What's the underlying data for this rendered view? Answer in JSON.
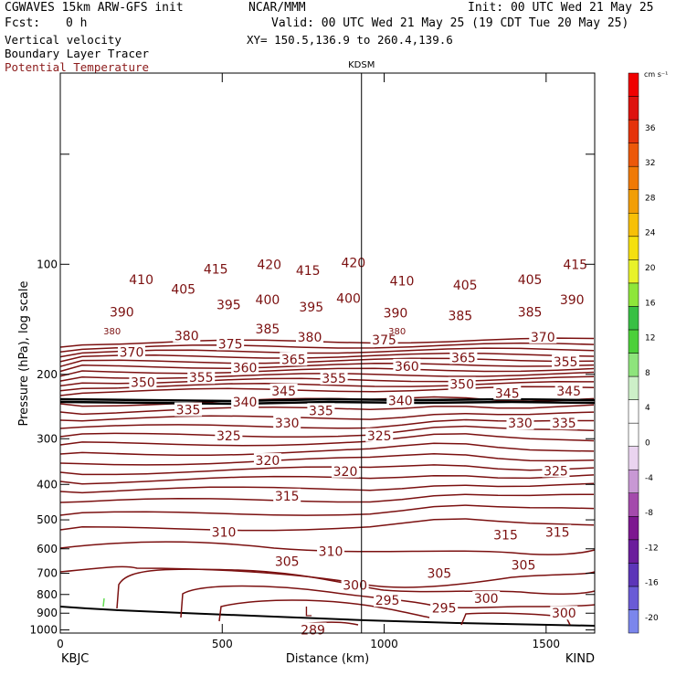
{
  "header": {
    "model": "CGWAVES 15km ARW-GFS init",
    "org": "NCAR/MMM",
    "init": "Init: 00 UTC Wed 21 May 25",
    "fcst_label": "Fcst:",
    "fcst_value": "0 h",
    "valid": "Valid: 00 UTC Wed 21 May 25 (19 CDT Tue 20 May 25)",
    "field1": "Vertical velocity",
    "xy": "XY= 150.5,136.9 to 260.4,139.6",
    "field2": "Boundary Layer Tracer",
    "field3": "Potential Temperature"
  },
  "chart_data": {
    "type": "contour",
    "ylabel": "Pressure (hPa), log scale",
    "xlabel": "Distance (km)",
    "x_ticks": [
      "0",
      "500",
      "1000",
      "1500"
    ],
    "xlim": [
      0,
      1650
    ],
    "y_ticks": [
      "100",
      "200",
      "300",
      "400",
      "500",
      "600",
      "700",
      "800",
      "900",
      "1000"
    ],
    "ylim": [
      1020,
      30
    ],
    "y_scale": "log",
    "station_marker": {
      "label": "KDSM",
      "x": 930
    },
    "left_station": "KBJC",
    "right_station": "KIND",
    "contour_color": "#7b1010",
    "contour_labels": [
      {
        "text": "420",
        "x": 645,
        "p": 100
      },
      {
        "text": "415",
        "x": 480,
        "p": 103
      },
      {
        "text": "415",
        "x": 765,
        "p": 104
      },
      {
        "text": "420",
        "x": 905,
        "p": 99
      },
      {
        "text": "415",
        "x": 1590,
        "p": 100
      },
      {
        "text": "410",
        "x": 250,
        "p": 110
      },
      {
        "text": "405",
        "x": 380,
        "p": 117
      },
      {
        "text": "410",
        "x": 1055,
        "p": 111
      },
      {
        "text": "405",
        "x": 1250,
        "p": 114
      },
      {
        "text": "405",
        "x": 1450,
        "p": 110
      },
      {
        "text": "400",
        "x": 640,
        "p": 125
      },
      {
        "text": "395",
        "x": 520,
        "p": 129
      },
      {
        "text": "395",
        "x": 775,
        "p": 131
      },
      {
        "text": "400",
        "x": 890,
        "p": 124
      },
      {
        "text": "390",
        "x": 1580,
        "p": 125
      },
      {
        "text": "390",
        "x": 190,
        "p": 135
      },
      {
        "text": "390",
        "x": 1035,
        "p": 136
      },
      {
        "text": "385",
        "x": 1235,
        "p": 138
      },
      {
        "text": "385",
        "x": 1450,
        "p": 135
      },
      {
        "text": "385",
        "x": 640,
        "p": 150
      },
      {
        "text": "380",
        "x": 390,
        "p": 157
      },
      {
        "text": "380",
        "x": 770,
        "p": 158
      },
      {
        "text": "375",
        "x": 1000,
        "p": 161
      },
      {
        "text": "370",
        "x": 1490,
        "p": 158
      },
      {
        "text": "375",
        "x": 525,
        "p": 165
      },
      {
        "text": "370",
        "x": 220,
        "p": 174
      },
      {
        "text": "365",
        "x": 720,
        "p": 182
      },
      {
        "text": "365",
        "x": 1245,
        "p": 180
      },
      {
        "text": "360",
        "x": 570,
        "p": 192
      },
      {
        "text": "360",
        "x": 1070,
        "p": 190
      },
      {
        "text": "355",
        "x": 1560,
        "p": 185
      },
      {
        "text": "355",
        "x": 435,
        "p": 204
      },
      {
        "text": "355",
        "x": 845,
        "p": 205
      },
      {
        "text": "350",
        "x": 255,
        "p": 210
      },
      {
        "text": "350",
        "x": 1240,
        "p": 213
      },
      {
        "text": "345",
        "x": 690,
        "p": 222
      },
      {
        "text": "345",
        "x": 1380,
        "p": 225
      },
      {
        "text": "345",
        "x": 1570,
        "p": 222
      },
      {
        "text": "340",
        "x": 570,
        "p": 238
      },
      {
        "text": "340",
        "x": 1050,
        "p": 236
      },
      {
        "text": "335",
        "x": 395,
        "p": 250
      },
      {
        "text": "335",
        "x": 805,
        "p": 251
      },
      {
        "text": "330",
        "x": 700,
        "p": 272
      },
      {
        "text": "330",
        "x": 1420,
        "p": 272
      },
      {
        "text": "335",
        "x": 1555,
        "p": 272
      },
      {
        "text": "325",
        "x": 520,
        "p": 294
      },
      {
        "text": "325",
        "x": 985,
        "p": 294
      },
      {
        "text": "320",
        "x": 640,
        "p": 344
      },
      {
        "text": "320",
        "x": 880,
        "p": 368
      },
      {
        "text": "325",
        "x": 1530,
        "p": 367
      },
      {
        "text": "315",
        "x": 700,
        "p": 430
      },
      {
        "text": "310",
        "x": 505,
        "p": 540
      },
      {
        "text": "315",
        "x": 1375,
        "p": 550
      },
      {
        "text": "315",
        "x": 1535,
        "p": 540
      },
      {
        "text": "310",
        "x": 835,
        "p": 610
      },
      {
        "text": "305",
        "x": 700,
        "p": 650
      },
      {
        "text": "305",
        "x": 1170,
        "p": 700
      },
      {
        "text": "305",
        "x": 1430,
        "p": 665
      },
      {
        "text": "300",
        "x": 910,
        "p": 755
      },
      {
        "text": "300",
        "x": 1315,
        "p": 820
      },
      {
        "text": "300",
        "x": 1555,
        "p": 900
      },
      {
        "text": "295",
        "x": 1010,
        "p": 830
      },
      {
        "text": "295",
        "x": 1185,
        "p": 870
      },
      {
        "text": "289",
        "x": 780,
        "p": 1000
      }
    ],
    "extrema": [
      {
        "label": "L",
        "x": 765,
        "p": 890
      }
    ],
    "tropopause_labels": [
      {
        "text": "380",
        "x": 160,
        "p": 152
      },
      {
        "text": "380",
        "x": 1040,
        "p": 152
      }
    ],
    "colorbar": {
      "unit": "cm s⁻¹",
      "levels": [
        "-20",
        "-16",
        "-12",
        "-8",
        "-4",
        "0",
        "4",
        "8",
        "12",
        "16",
        "20",
        "24",
        "28",
        "32",
        "36"
      ],
      "colors": [
        "#7b86ec",
        "#6a5bd6",
        "#5c35b8",
        "#6b1d9c",
        "#7d1790",
        "#a44aac",
        "#c898d4",
        "#ead4f0",
        "#ffffff",
        "#ffffff",
        "#cdf0c8",
        "#8ee47c",
        "#4cd03a",
        "#38c044",
        "#8ee63a",
        "#e8f22a",
        "#f5e00f",
        "#f7c007",
        "#f29e05",
        "#f07a05",
        "#ec5808",
        "#e5330a",
        "#de120e",
        "#f00000"
      ]
    }
  }
}
